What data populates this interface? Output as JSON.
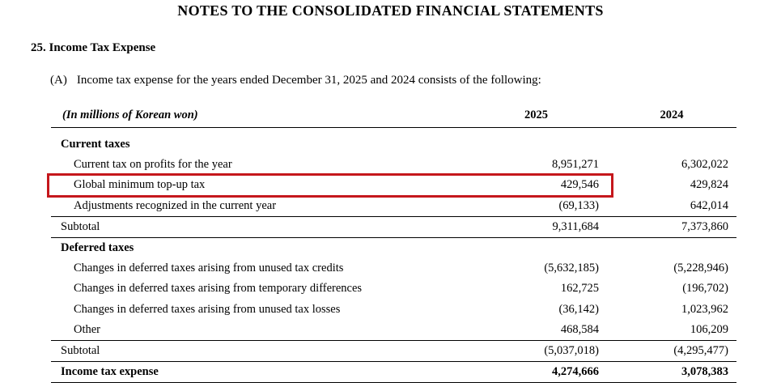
{
  "page": {
    "title": "NOTES TO THE CONSOLIDATED FINANCIAL STATEMENTS",
    "section_heading": "25. Income Tax Expense",
    "intro": {
      "marker": "(A)",
      "text": "Income tax expense for the years ended December 31, 2025 and 2024 consists of the following:"
    }
  },
  "table": {
    "unit_label": "(In millions of Korean won)",
    "col_2025": "2025",
    "col_2024": "2024",
    "rows": [
      {
        "label": "Current taxes",
        "v2025": "",
        "v2024": "",
        "kind": "group"
      },
      {
        "label": "Current tax on profits for the year",
        "v2025": "8,951,271",
        "v2024": "6,302,022",
        "kind": "detail"
      },
      {
        "label": "Global minimum top-up tax",
        "v2025": "429,546",
        "v2024": "429,824",
        "kind": "detail",
        "highlighted": true
      },
      {
        "label": "Adjustments recognized in the current year",
        "v2025": "(69,133)",
        "v2024": "642,014",
        "kind": "detail"
      },
      {
        "label": "Subtotal",
        "v2025": "9,311,684",
        "v2024": "7,373,860",
        "kind": "subtotal"
      },
      {
        "label": "Deferred taxes",
        "v2025": "",
        "v2024": "",
        "kind": "group"
      },
      {
        "label": "Changes in deferred taxes arising from unused tax credits",
        "v2025": "(5,632,185)",
        "v2024": "(5,228,946)",
        "kind": "detail"
      },
      {
        "label": "Changes in deferred taxes arising from temporary differences",
        "v2025": "162,725",
        "v2024": "(196,702)",
        "kind": "detail"
      },
      {
        "label": "Changes in deferred taxes arising from unused tax losses",
        "v2025": "(36,142)",
        "v2024": "1,023,962",
        "kind": "detail"
      },
      {
        "label": "Other",
        "v2025": "468,584",
        "v2024": "106,209",
        "kind": "detail"
      },
      {
        "label": "Subtotal",
        "v2025": "(5,037,018)",
        "v2024": "(4,295,477)",
        "kind": "subtotal"
      },
      {
        "label": "Income tax expense",
        "v2025": "4,274,666",
        "v2024": "3,078,383",
        "kind": "total"
      }
    ]
  },
  "highlight_color": "#c5171c"
}
